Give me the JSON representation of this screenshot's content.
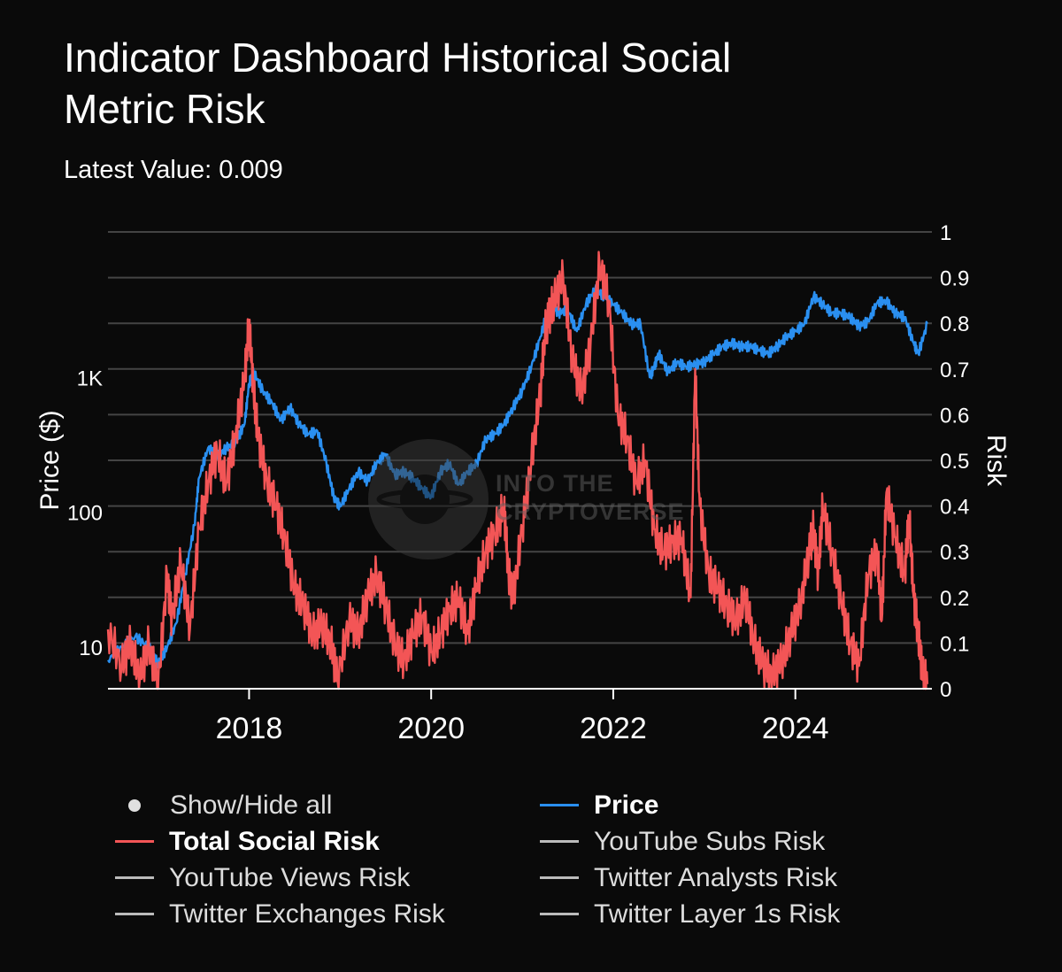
{
  "title": "Indicator Dashboard Historical Social Metric Risk",
  "subtitle": "Latest Value: 0.009",
  "watermark": {
    "line1": "INTO THE",
    "line2": "CRYPTOVERSE"
  },
  "legend": {
    "items": [
      {
        "label": "Show/Hide all",
        "marker": "dot",
        "active": false
      },
      {
        "label": "Price",
        "marker": "line",
        "color": "#2a8ff0",
        "active": true
      },
      {
        "label": "Total Social Risk",
        "marker": "line",
        "color": "#f35556",
        "active": true
      },
      {
        "label": "YouTube Subs Risk",
        "marker": "line",
        "color": "#bbbbbb",
        "active": false
      },
      {
        "label": "YouTube Views Risk",
        "marker": "line",
        "color": "#bbbbbb",
        "active": false
      },
      {
        "label": "Twitter Analysts Risk",
        "marker": "line",
        "color": "#bbbbbb",
        "active": false
      },
      {
        "label": "Twitter Exchanges Risk",
        "marker": "line",
        "color": "#bbbbbb",
        "active": false
      },
      {
        "label": "Twitter Layer 1s Risk",
        "marker": "line",
        "color": "#bbbbbb",
        "active": false
      }
    ]
  },
  "chart_data": {
    "type": "line",
    "title": "Indicator Dashboard Historical Social Metric Risk",
    "subtitle": "Latest Value: 0.009",
    "xlim": [
      2016.45,
      2025.5
    ],
    "x_ticks": [
      2018,
      2020,
      2022,
      2024
    ],
    "y_left": {
      "label": "Price ($)",
      "scale": "log",
      "range": [
        4.9,
        12000
      ],
      "ticks": [
        10,
        100,
        1000
      ],
      "tick_labels": [
        "10",
        "100",
        "1K"
      ]
    },
    "y_right": {
      "label": "Risk",
      "range": [
        0,
        1
      ],
      "ticks": [
        0,
        0.1,
        0.2,
        0.3,
        0.4,
        0.5,
        0.6,
        0.7,
        0.8,
        0.9,
        1
      ],
      "tick_labels": [
        "0",
        "0.1",
        "0.2",
        "0.3",
        "0.4",
        "0.5",
        "0.6",
        "0.7",
        "0.8",
        "0.9",
        "1"
      ]
    },
    "grid": true,
    "series": [
      {
        "name": "Price",
        "axis": "left",
        "color": "#2a8ff0",
        "x": [
          2016.45,
          2016.6,
          2016.75,
          2016.9,
          2017.0,
          2017.1,
          2017.2,
          2017.3,
          2017.4,
          2017.45,
          2017.55,
          2017.65,
          2017.75,
          2017.85,
          2017.95,
          2018.0,
          2018.05,
          2018.15,
          2018.25,
          2018.35,
          2018.45,
          2018.55,
          2018.65,
          2018.75,
          2018.85,
          2018.93,
          2019.0,
          2019.1,
          2019.2,
          2019.3,
          2019.4,
          2019.5,
          2019.6,
          2019.7,
          2019.8,
          2019.9,
          2020.0,
          2020.1,
          2020.2,
          2020.3,
          2020.4,
          2020.5,
          2020.6,
          2020.7,
          2020.8,
          2020.9,
          2021.0,
          2021.1,
          2021.2,
          2021.3,
          2021.4,
          2021.5,
          2021.6,
          2021.7,
          2021.8,
          2021.9,
          2022.0,
          2022.1,
          2022.2,
          2022.3,
          2022.4,
          2022.45,
          2022.5,
          2022.6,
          2022.7,
          2022.8,
          2022.9,
          2023.0,
          2023.1,
          2023.2,
          2023.3,
          2023.4,
          2023.5,
          2023.6,
          2023.7,
          2023.8,
          2023.9,
          2024.0,
          2024.1,
          2024.2,
          2024.3,
          2024.4,
          2024.5,
          2024.6,
          2024.7,
          2024.8,
          2024.9,
          2025.0,
          2025.1,
          2025.2,
          2025.3,
          2025.35,
          2025.45
        ],
        "y": [
          8,
          10,
          12,
          10,
          7.5,
          10,
          15,
          35,
          80,
          180,
          300,
          260,
          300,
          330,
          450,
          900,
          1100,
          800,
          650,
          480,
          600,
          450,
          380,
          400,
          230,
          130,
          110,
          150,
          200,
          170,
          230,
          270,
          190,
          200,
          180,
          150,
          130,
          200,
          230,
          160,
          200,
          230,
          350,
          380,
          450,
          600,
          800,
          1200,
          2000,
          3500,
          3000,
          3200,
          2200,
          3500,
          4500,
          4000,
          3500,
          3000,
          2500,
          2500,
          1000,
          1200,
          1500,
          1100,
          1300,
          1200,
          1250,
          1300,
          1500,
          1700,
          1800,
          1700,
          1700,
          1600,
          1500,
          1700,
          2000,
          2200,
          2500,
          4000,
          3500,
          3000,
          3000,
          2800,
          2400,
          2600,
          3600,
          3700,
          3000,
          2800,
          1800,
          1500,
          2500
        ]
      },
      {
        "name": "Total Social Risk",
        "axis": "right",
        "color": "#f35556",
        "x": [
          2016.45,
          2016.6,
          2016.7,
          2016.8,
          2016.9,
          2017.0,
          2017.1,
          2017.15,
          2017.25,
          2017.35,
          2017.45,
          2017.55,
          2017.65,
          2017.75,
          2017.85,
          2017.95,
          2018.0,
          2018.05,
          2018.1,
          2018.2,
          2018.3,
          2018.4,
          2018.5,
          2018.6,
          2018.7,
          2018.8,
          2018.9,
          2018.97,
          2019.1,
          2019.2,
          2019.3,
          2019.4,
          2019.5,
          2019.6,
          2019.7,
          2019.8,
          2019.9,
          2020.0,
          2020.1,
          2020.2,
          2020.3,
          2020.4,
          2020.5,
          2020.6,
          2020.7,
          2020.8,
          2020.85,
          2020.9,
          2021.0,
          2021.1,
          2021.2,
          2021.25,
          2021.3,
          2021.35,
          2021.45,
          2021.55,
          2021.65,
          2021.75,
          2021.85,
          2021.95,
          2022.05,
          2022.15,
          2022.25,
          2022.35,
          2022.45,
          2022.55,
          2022.65,
          2022.75,
          2022.85,
          2022.9,
          2022.95,
          2023.05,
          2023.15,
          2023.25,
          2023.35,
          2023.45,
          2023.55,
          2023.65,
          2023.75,
          2023.85,
          2023.95,
          2024.05,
          2024.15,
          2024.2,
          2024.25,
          2024.3,
          2024.4,
          2024.5,
          2024.6,
          2024.7,
          2024.8,
          2024.9,
          2024.95,
          2025.0,
          2025.1,
          2025.2,
          2025.25,
          2025.3,
          2025.35,
          2025.4,
          2025.45
        ],
        "y": [
          0.13,
          0.05,
          0.1,
          0.02,
          0.1,
          0.0,
          0.25,
          0.15,
          0.28,
          0.13,
          0.35,
          0.45,
          0.52,
          0.45,
          0.55,
          0.68,
          0.8,
          0.65,
          0.55,
          0.45,
          0.4,
          0.32,
          0.22,
          0.18,
          0.12,
          0.14,
          0.1,
          0.02,
          0.15,
          0.12,
          0.2,
          0.25,
          0.18,
          0.1,
          0.06,
          0.12,
          0.16,
          0.08,
          0.12,
          0.17,
          0.2,
          0.12,
          0.23,
          0.3,
          0.34,
          0.4,
          0.25,
          0.2,
          0.35,
          0.5,
          0.65,
          0.78,
          0.82,
          0.85,
          0.9,
          0.72,
          0.65,
          0.75,
          0.93,
          0.85,
          0.6,
          0.55,
          0.45,
          0.5,
          0.35,
          0.3,
          0.32,
          0.33,
          0.2,
          0.7,
          0.4,
          0.25,
          0.22,
          0.18,
          0.15,
          0.2,
          0.1,
          0.05,
          0.03,
          0.06,
          0.12,
          0.18,
          0.3,
          0.35,
          0.25,
          0.4,
          0.3,
          0.2,
          0.1,
          0.05,
          0.25,
          0.3,
          0.15,
          0.43,
          0.33,
          0.25,
          0.38,
          0.2,
          0.12,
          0.03,
          0.01
        ]
      }
    ]
  }
}
